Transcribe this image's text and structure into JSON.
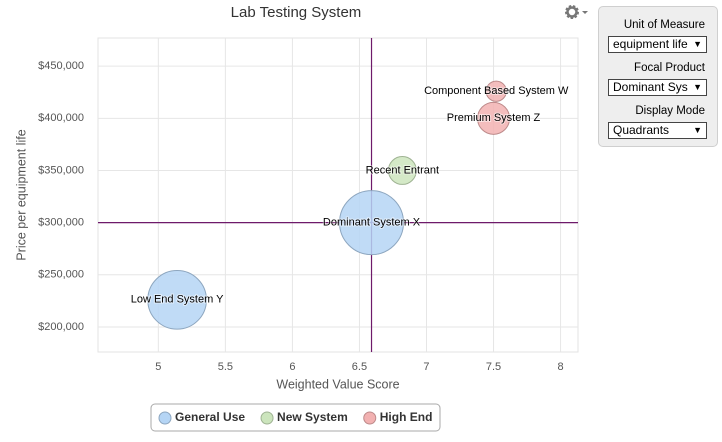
{
  "chart_data": {
    "type": "bubble",
    "title": "Lab Testing System",
    "x_label": "Weighted Value Score",
    "y_label": "Price per equipment life",
    "xlim": [
      4.55,
      8.13
    ],
    "ylim": [
      176000,
      477000
    ],
    "xticks": [
      5,
      5.5,
      6,
      6.5,
      7,
      7.5,
      8
    ],
    "yticks": [
      {
        "value": 200000,
        "label": "$200,000"
      },
      {
        "value": 250000,
        "label": "$250,000"
      },
      {
        "value": 300000,
        "label": "$300,000"
      },
      {
        "value": 350000,
        "label": "$350,000"
      },
      {
        "value": 400000,
        "label": "$400,000"
      },
      {
        "value": 450000,
        "label": "$450,000"
      }
    ],
    "grid": true,
    "series": [
      {
        "name": "General Use",
        "color": "#b5d5f5",
        "x": [
          5.14,
          6.59
        ],
        "values": [
          226000,
          300000
        ],
        "sizes": [
          84,
          100
        ],
        "labels": [
          "Low End System Y",
          "Dominant System X"
        ]
      },
      {
        "name": "New System",
        "color": "#cce5bd",
        "x": [
          6.82
        ],
        "values": [
          350000
        ],
        "sizes": [
          19
        ],
        "labels": [
          "Recent Entrant"
        ]
      },
      {
        "name": "High End",
        "color": "#f2b1b1",
        "x": [
          7.5,
          7.52
        ],
        "values": [
          400000,
          426000
        ],
        "sizes": [
          25,
          10
        ],
        "labels": [
          "Premium System Z",
          "Component Based System W"
        ]
      }
    ]
  },
  "panel": {
    "unit_label": "Unit of Measure",
    "unit_value": "equipment life",
    "focal_label": "Focal Product",
    "focal_value": "Dominant Sys",
    "mode_label": "Display Mode",
    "mode_value": "Quadrants"
  }
}
